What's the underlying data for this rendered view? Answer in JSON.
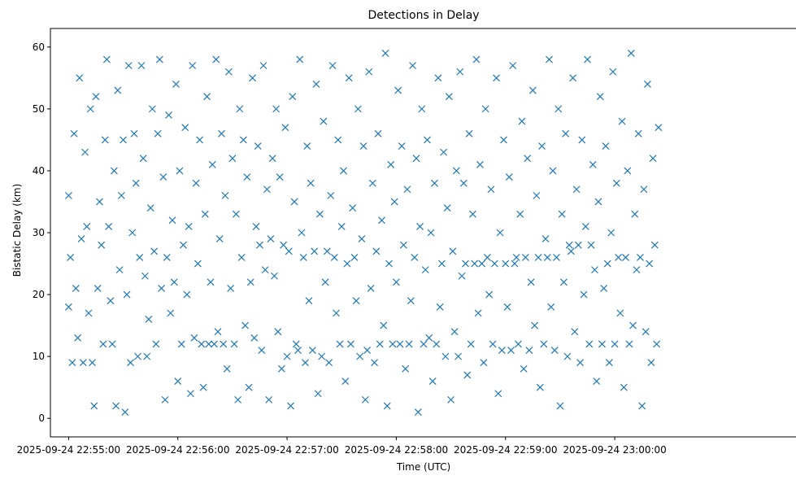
{
  "chart_data": {
    "type": "scatter",
    "title": "Detections in Delay",
    "xlabel": "Time (UTC)",
    "ylabel": "Bistatic Delay (km)",
    "x_unit": "seconds after 2025-09-24 22:55:00 UTC",
    "xlim": [
      -10,
      400
    ],
    "ylim": [
      -3,
      63
    ],
    "x_ticks": [
      0,
      60,
      120,
      180,
      240,
      300
    ],
    "x_tick_labels": [
      "2025-09-24 22:55:00",
      "2025-09-24 22:56:00",
      "2025-09-24 22:57:00",
      "2025-09-24 22:58:00",
      "2025-09-24 22:59:00",
      "2025-09-24 23:00:00"
    ],
    "y_ticks": [
      0,
      10,
      20,
      30,
      40,
      50,
      60
    ],
    "y_tick_labels": [
      "0",
      "10",
      "20",
      "30",
      "40",
      "50",
      "60"
    ],
    "marker": "x",
    "color": "#1f77b4",
    "grid": false,
    "series": [
      {
        "points": [
          [
            0,
            36
          ],
          [
            0,
            18
          ],
          [
            1,
            26
          ],
          [
            2,
            9
          ],
          [
            3,
            46
          ],
          [
            4,
            21
          ],
          [
            5,
            13
          ],
          [
            6,
            55
          ],
          [
            7,
            29
          ],
          [
            8,
            9
          ],
          [
            9,
            43
          ],
          [
            10,
            31
          ],
          [
            11,
            17
          ],
          [
            12,
            50
          ],
          [
            13,
            9
          ],
          [
            14,
            2
          ],
          [
            15,
            52
          ],
          [
            16,
            21
          ],
          [
            17,
            35
          ],
          [
            18,
            28
          ],
          [
            19,
            12
          ],
          [
            20,
            45
          ],
          [
            21,
            58
          ],
          [
            22,
            31
          ],
          [
            23,
            19
          ],
          [
            24,
            12
          ],
          [
            25,
            40
          ],
          [
            26,
            2
          ],
          [
            27,
            53
          ],
          [
            28,
            24
          ],
          [
            29,
            36
          ],
          [
            30,
            45
          ],
          [
            31,
            1
          ],
          [
            32,
            20
          ],
          [
            33,
            57
          ],
          [
            34,
            9
          ],
          [
            35,
            30
          ],
          [
            36,
            46
          ],
          [
            37,
            38
          ],
          [
            38,
            10
          ],
          [
            39,
            26
          ],
          [
            40,
            57
          ],
          [
            41,
            42
          ],
          [
            42,
            23
          ],
          [
            43,
            10
          ],
          [
            44,
            16
          ],
          [
            45,
            34
          ],
          [
            46,
            50
          ],
          [
            47,
            27
          ],
          [
            48,
            12
          ],
          [
            49,
            46
          ],
          [
            50,
            58
          ],
          [
            51,
            21
          ],
          [
            52,
            39
          ],
          [
            53,
            3
          ],
          [
            54,
            26
          ],
          [
            55,
            49
          ],
          [
            56,
            17
          ],
          [
            57,
            32
          ],
          [
            58,
            22
          ],
          [
            59,
            54
          ],
          [
            60,
            6
          ],
          [
            61,
            40
          ],
          [
            62,
            12
          ],
          [
            63,
            28
          ],
          [
            64,
            47
          ],
          [
            65,
            20
          ],
          [
            66,
            31
          ],
          [
            67,
            4
          ],
          [
            68,
            57
          ],
          [
            69,
            13
          ],
          [
            70,
            38
          ],
          [
            71,
            25
          ],
          [
            72,
            45
          ],
          [
            73,
            12
          ],
          [
            74,
            5
          ],
          [
            75,
            33
          ],
          [
            76,
            52
          ],
          [
            77,
            12
          ],
          [
            78,
            22
          ],
          [
            79,
            41
          ],
          [
            80,
            12
          ],
          [
            81,
            58
          ],
          [
            82,
            14
          ],
          [
            83,
            29
          ],
          [
            84,
            46
          ],
          [
            85,
            12
          ],
          [
            86,
            36
          ],
          [
            87,
            8
          ],
          [
            88,
            56
          ],
          [
            89,
            21
          ],
          [
            90,
            42
          ],
          [
            91,
            12
          ],
          [
            92,
            33
          ],
          [
            93,
            3
          ],
          [
            94,
            50
          ],
          [
            95,
            26
          ],
          [
            96,
            45
          ],
          [
            97,
            15
          ],
          [
            98,
            39
          ],
          [
            99,
            5
          ],
          [
            100,
            22
          ],
          [
            101,
            55
          ],
          [
            102,
            13
          ],
          [
            103,
            31
          ],
          [
            104,
            44
          ],
          [
            105,
            28
          ],
          [
            106,
            11
          ],
          [
            107,
            57
          ],
          [
            108,
            24
          ],
          [
            109,
            37
          ],
          [
            110,
            3
          ],
          [
            111,
            29
          ],
          [
            112,
            42
          ],
          [
            113,
            23
          ],
          [
            114,
            50
          ],
          [
            115,
            14
          ],
          [
            116,
            39
          ],
          [
            117,
            8
          ],
          [
            118,
            28
          ],
          [
            119,
            47
          ],
          [
            120,
            10
          ],
          [
            121,
            27
          ],
          [
            122,
            2
          ],
          [
            123,
            52
          ],
          [
            124,
            35
          ],
          [
            125,
            12
          ],
          [
            126,
            11
          ],
          [
            127,
            58
          ],
          [
            128,
            30
          ],
          [
            129,
            26
          ],
          [
            130,
            9
          ],
          [
            131,
            44
          ],
          [
            132,
            19
          ],
          [
            133,
            38
          ],
          [
            134,
            11
          ],
          [
            135,
            27
          ],
          [
            136,
            54
          ],
          [
            137,
            4
          ],
          [
            138,
            33
          ],
          [
            139,
            10
          ],
          [
            140,
            48
          ],
          [
            141,
            22
          ],
          [
            142,
            27
          ],
          [
            143,
            9
          ],
          [
            144,
            36
          ],
          [
            145,
            57
          ],
          [
            146,
            26
          ],
          [
            147,
            17
          ],
          [
            148,
            45
          ],
          [
            149,
            12
          ],
          [
            150,
            31
          ],
          [
            151,
            40
          ],
          [
            152,
            6
          ],
          [
            153,
            25
          ],
          [
            154,
            55
          ],
          [
            155,
            12
          ],
          [
            156,
            34
          ],
          [
            157,
            26
          ],
          [
            158,
            19
          ],
          [
            159,
            50
          ],
          [
            160,
            10
          ],
          [
            161,
            29
          ],
          [
            162,
            44
          ],
          [
            163,
            3
          ],
          [
            164,
            11
          ],
          [
            165,
            56
          ],
          [
            166,
            21
          ],
          [
            167,
            38
          ],
          [
            168,
            9
          ],
          [
            169,
            27
          ],
          [
            170,
            46
          ],
          [
            171,
            12
          ],
          [
            172,
            32
          ],
          [
            173,
            15
          ],
          [
            174,
            59
          ],
          [
            175,
            2
          ],
          [
            176,
            25
          ],
          [
            177,
            41
          ],
          [
            178,
            12
          ],
          [
            179,
            35
          ],
          [
            180,
            22
          ],
          [
            181,
            53
          ],
          [
            182,
            12
          ],
          [
            183,
            44
          ],
          [
            184,
            28
          ],
          [
            185,
            8
          ],
          [
            186,
            37
          ],
          [
            187,
            12
          ],
          [
            188,
            19
          ],
          [
            189,
            57
          ],
          [
            190,
            26
          ],
          [
            191,
            42
          ],
          [
            192,
            1
          ],
          [
            193,
            31
          ],
          [
            194,
            50
          ],
          [
            195,
            12
          ],
          [
            196,
            24
          ],
          [
            197,
            45
          ],
          [
            198,
            13
          ],
          [
            199,
            30
          ],
          [
            200,
            6
          ],
          [
            201,
            38
          ],
          [
            202,
            12
          ],
          [
            203,
            55
          ],
          [
            204,
            18
          ],
          [
            205,
            25
          ],
          [
            206,
            43
          ],
          [
            207,
            10
          ],
          [
            208,
            34
          ],
          [
            209,
            52
          ],
          [
            210,
            3
          ],
          [
            211,
            27
          ],
          [
            212,
            14
          ],
          [
            213,
            40
          ],
          [
            214,
            10
          ],
          [
            215,
            56
          ],
          [
            216,
            23
          ],
          [
            217,
            38
          ],
          [
            218,
            25
          ],
          [
            219,
            7
          ],
          [
            220,
            46
          ],
          [
            221,
            12
          ],
          [
            222,
            33
          ],
          [
            223,
            25
          ],
          [
            224,
            58
          ],
          [
            225,
            17
          ],
          [
            226,
            41
          ],
          [
            227,
            25
          ],
          [
            228,
            9
          ],
          [
            229,
            50
          ],
          [
            230,
            26
          ],
          [
            231,
            20
          ],
          [
            232,
            37
          ],
          [
            233,
            12
          ],
          [
            234,
            25
          ],
          [
            235,
            55
          ],
          [
            236,
            4
          ],
          [
            237,
            30
          ],
          [
            238,
            11
          ],
          [
            239,
            45
          ],
          [
            240,
            25
          ],
          [
            241,
            18
          ],
          [
            242,
            39
          ],
          [
            243,
            11
          ],
          [
            244,
            57
          ],
          [
            245,
            25
          ],
          [
            246,
            26
          ],
          [
            247,
            12
          ],
          [
            248,
            33
          ],
          [
            249,
            48
          ],
          [
            250,
            8
          ],
          [
            251,
            26
          ],
          [
            252,
            42
          ],
          [
            253,
            11
          ],
          [
            254,
            22
          ],
          [
            255,
            53
          ],
          [
            256,
            15
          ],
          [
            257,
            36
          ],
          [
            258,
            26
          ],
          [
            259,
            5
          ],
          [
            260,
            44
          ],
          [
            261,
            12
          ],
          [
            262,
            29
          ],
          [
            263,
            26
          ],
          [
            264,
            58
          ],
          [
            265,
            18
          ],
          [
            266,
            40
          ],
          [
            267,
            11
          ],
          [
            268,
            26
          ],
          [
            269,
            50
          ],
          [
            270,
            2
          ],
          [
            271,
            33
          ],
          [
            272,
            22
          ],
          [
            273,
            46
          ],
          [
            274,
            10
          ],
          [
            275,
            28
          ],
          [
            276,
            27
          ],
          [
            277,
            55
          ],
          [
            278,
            14
          ],
          [
            279,
            37
          ],
          [
            280,
            28
          ],
          [
            281,
            9
          ],
          [
            282,
            45
          ],
          [
            283,
            20
          ],
          [
            284,
            31
          ],
          [
            285,
            58
          ],
          [
            286,
            12
          ],
          [
            287,
            28
          ],
          [
            288,
            41
          ],
          [
            289,
            24
          ],
          [
            290,
            6
          ],
          [
            291,
            35
          ],
          [
            292,
            52
          ],
          [
            293,
            12
          ],
          [
            294,
            21
          ],
          [
            295,
            44
          ],
          [
            296,
            25
          ],
          [
            297,
            9
          ],
          [
            298,
            30
          ],
          [
            299,
            56
          ],
          [
            300,
            12
          ],
          [
            301,
            38
          ],
          [
            302,
            26
          ],
          [
            303,
            17
          ],
          [
            304,
            48
          ],
          [
            305,
            5
          ],
          [
            306,
            26
          ],
          [
            307,
            40
          ],
          [
            308,
            12
          ],
          [
            309,
            59
          ],
          [
            310,
            15
          ],
          [
            311,
            33
          ],
          [
            312,
            24
          ],
          [
            313,
            46
          ],
          [
            314,
            26
          ],
          [
            315,
            2
          ],
          [
            316,
            37
          ],
          [
            317,
            14
          ],
          [
            318,
            54
          ],
          [
            319,
            25
          ],
          [
            320,
            9
          ],
          [
            321,
            42
          ],
          [
            322,
            28
          ],
          [
            323,
            12
          ],
          [
            324,
            47
          ]
        ]
      }
    ]
  }
}
